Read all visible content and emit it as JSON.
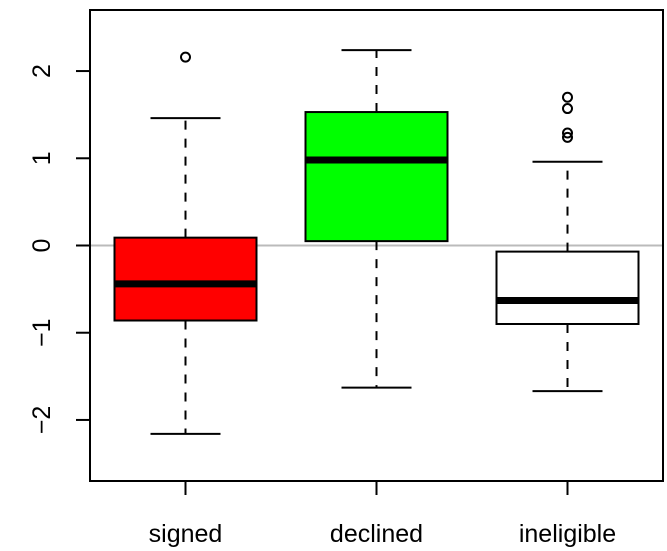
{
  "chart_data": {
    "type": "boxplot",
    "categories": [
      "signed",
      "declined",
      "ineligible"
    ],
    "boxes": [
      {
        "category": "signed",
        "whisker_low": -2.16,
        "q1": -0.86,
        "median": -0.44,
        "q3": 0.09,
        "whisker_high": 1.46,
        "outliers": [
          2.16
        ],
        "fill": "#ff0000"
      },
      {
        "category": "declined",
        "whisker_low": -1.63,
        "q1": 0.05,
        "median": 0.98,
        "q3": 1.53,
        "whisker_high": 2.24,
        "outliers": [],
        "fill": "#00ff00"
      },
      {
        "category": "ineligible",
        "whisker_low": -1.67,
        "q1": -0.9,
        "median": -0.63,
        "q3": -0.07,
        "whisker_high": 0.96,
        "outliers": [
          1.24,
          1.29,
          1.57,
          1.7
        ],
        "fill": "#ffffff"
      }
    ],
    "y_ticks": [
      "-2",
      "-1",
      "0",
      "1",
      "2"
    ],
    "ylim": [
      -2.7,
      2.7
    ],
    "reference_line": {
      "y": 0,
      "color": "#bbbbbb"
    },
    "title": "",
    "xlabel": "",
    "ylabel": "",
    "grid": false,
    "legend": "none"
  }
}
